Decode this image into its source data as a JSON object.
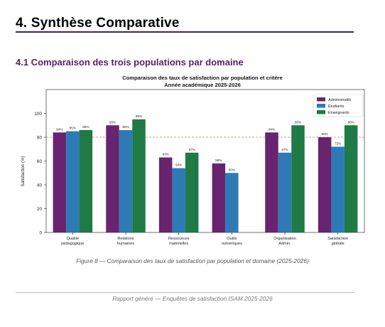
{
  "section": {
    "title": "4.  Synthèse Comparative",
    "subtitle": "4.1  Comparaison des trois populations par domaine"
  },
  "figure": {
    "caption": "Figure 8 — Comparaison des taux de satisfaction par population et domaine (2025-2026)"
  },
  "footer": {
    "text": "Rapport généré — Enquêtes de satisfaction ISAM 2025-2026"
  },
  "chart_data": {
    "type": "bar",
    "title": "Comparaison des taux de satisfaction par population et critère",
    "subtitle": "Année académique 2025-2026",
    "ylabel": "Satisfaction (%)",
    "xlabel": "",
    "ylim": [
      0,
      120
    ],
    "yticks": [
      0,
      20,
      40,
      60,
      80,
      100
    ],
    "reference_line": 80,
    "grid": false,
    "legend_position": "top-right",
    "categories": [
      [
        "Qualité",
        "pédagogique"
      ],
      [
        "Relations",
        "humaines"
      ],
      [
        "Ressources",
        "matérielles"
      ],
      [
        "Outils",
        "numériques"
      ],
      [
        "Organisation",
        "Admin."
      ],
      [
        "Satisfaction",
        "globale"
      ]
    ],
    "series": [
      {
        "name": "Administratifs",
        "color": "#68246f",
        "values": [
          84,
          90,
          63,
          58,
          84,
          80
        ]
      },
      {
        "name": "Étudiants",
        "color": "#2e7ab5",
        "values": [
          85,
          86,
          54,
          50,
          67,
          72
        ]
      },
      {
        "name": "Enseignants",
        "color": "#1f7a45",
        "values": [
          86,
          95,
          67,
          null,
          90,
          90
        ]
      }
    ]
  }
}
